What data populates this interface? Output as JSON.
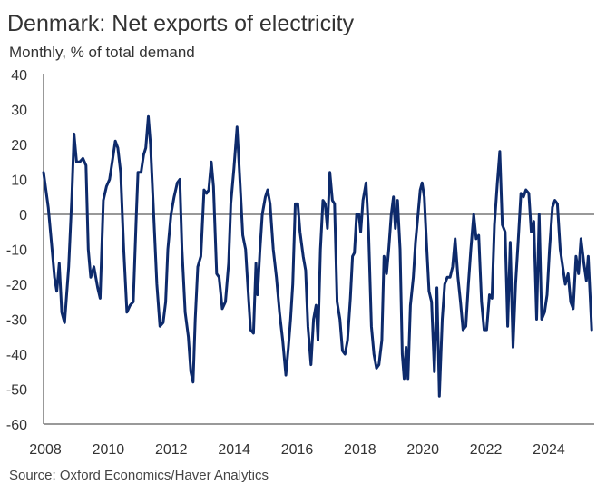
{
  "title": "Denmark: Net exports of electricity",
  "subtitle": "Monthly, % of total demand",
  "source": "Source: Oxford Economics/Haver Analytics",
  "colors": {
    "line": "#0d2a6b",
    "zero_line": "#333333",
    "axis": "#333333"
  },
  "chart_data": {
    "type": "line",
    "title": "Denmark: Net exports of electricity",
    "subtitle": "Monthly, % of total demand",
    "ylim": [
      -60,
      40
    ],
    "y_ticks": [
      40,
      30,
      20,
      10,
      0,
      -10,
      -20,
      -30,
      -40,
      -50,
      -60
    ],
    "x_range": [
      2008.0,
      2025.5
    ],
    "x_ticks": [
      2008,
      2010,
      2012,
      2014,
      2016,
      2018,
      2020,
      2022,
      2024
    ],
    "grid": false,
    "legend": "none",
    "series": [
      {
        "points": [
          [
            2008.0,
            12
          ],
          [
            2008.15,
            2
          ],
          [
            2008.25,
            -8
          ],
          [
            2008.35,
            -18
          ],
          [
            2008.42,
            -22
          ],
          [
            2008.5,
            -14
          ],
          [
            2008.58,
            -28
          ],
          [
            2008.67,
            -31
          ],
          [
            2008.8,
            -15
          ],
          [
            2008.9,
            5
          ],
          [
            2008.97,
            23
          ],
          [
            2009.05,
            15
          ],
          [
            2009.15,
            15
          ],
          [
            2009.25,
            16
          ],
          [
            2009.35,
            14
          ],
          [
            2009.42,
            -10
          ],
          [
            2009.5,
            -18
          ],
          [
            2009.6,
            -15
          ],
          [
            2009.72,
            -21
          ],
          [
            2009.8,
            -24
          ],
          [
            2009.9,
            4
          ],
          [
            2010.0,
            8
          ],
          [
            2010.1,
            10
          ],
          [
            2010.2,
            16
          ],
          [
            2010.28,
            21
          ],
          [
            2010.36,
            19
          ],
          [
            2010.45,
            12
          ],
          [
            2010.55,
            -10
          ],
          [
            2010.65,
            -28
          ],
          [
            2010.75,
            -26
          ],
          [
            2010.85,
            -25
          ],
          [
            2010.95,
            0
          ],
          [
            2011.0,
            12
          ],
          [
            2011.1,
            12
          ],
          [
            2011.18,
            17
          ],
          [
            2011.25,
            19
          ],
          [
            2011.33,
            28
          ],
          [
            2011.4,
            20
          ],
          [
            2011.5,
            0
          ],
          [
            2011.6,
            -20
          ],
          [
            2011.7,
            -32
          ],
          [
            2011.8,
            -31
          ],
          [
            2011.88,
            -25
          ],
          [
            2011.95,
            -10
          ],
          [
            2012.05,
            0
          ],
          [
            2012.15,
            5
          ],
          [
            2012.25,
            9
          ],
          [
            2012.33,
            10
          ],
          [
            2012.4,
            -10
          ],
          [
            2012.5,
            -28
          ],
          [
            2012.6,
            -35
          ],
          [
            2012.68,
            -45
          ],
          [
            2012.75,
            -48
          ],
          [
            2012.82,
            -30
          ],
          [
            2012.9,
            -15
          ],
          [
            2013.0,
            -12
          ],
          [
            2013.1,
            7
          ],
          [
            2013.18,
            6
          ],
          [
            2013.25,
            7
          ],
          [
            2013.33,
            15
          ],
          [
            2013.4,
            8
          ],
          [
            2013.5,
            -17
          ],
          [
            2013.58,
            -18
          ],
          [
            2013.68,
            -27
          ],
          [
            2013.78,
            -25
          ],
          [
            2013.88,
            -14
          ],
          [
            2013.95,
            3
          ],
          [
            2014.05,
            13
          ],
          [
            2014.15,
            25
          ],
          [
            2014.25,
            8
          ],
          [
            2014.33,
            -6
          ],
          [
            2014.42,
            -10
          ],
          [
            2014.5,
            -22
          ],
          [
            2014.58,
            -33
          ],
          [
            2014.67,
            -34
          ],
          [
            2014.75,
            -14
          ],
          [
            2014.8,
            -23
          ],
          [
            2014.88,
            -10
          ],
          [
            2014.95,
            0
          ],
          [
            2015.05,
            5
          ],
          [
            2015.12,
            7
          ],
          [
            2015.2,
            3
          ],
          [
            2015.3,
            -10
          ],
          [
            2015.4,
            -18
          ],
          [
            2015.5,
            -28
          ],
          [
            2015.6,
            -36
          ],
          [
            2015.7,
            -46
          ],
          [
            2015.78,
            -38
          ],
          [
            2015.85,
            -30
          ],
          [
            2015.92,
            -20
          ],
          [
            2016.0,
            3
          ],
          [
            2016.08,
            3
          ],
          [
            2016.15,
            -5
          ],
          [
            2016.25,
            -12
          ],
          [
            2016.33,
            -16
          ],
          [
            2016.4,
            -32
          ],
          [
            2016.5,
            -43
          ],
          [
            2016.58,
            -30
          ],
          [
            2016.66,
            -26
          ],
          [
            2016.72,
            -36
          ],
          [
            2016.8,
            -10
          ],
          [
            2016.88,
            4
          ],
          [
            2016.95,
            3
          ],
          [
            2017.02,
            -4
          ],
          [
            2017.1,
            12
          ],
          [
            2017.18,
            4
          ],
          [
            2017.25,
            3
          ],
          [
            2017.33,
            -25
          ],
          [
            2017.42,
            -30
          ],
          [
            2017.5,
            -39
          ],
          [
            2017.58,
            -40
          ],
          [
            2017.66,
            -36
          ],
          [
            2017.75,
            -24
          ],
          [
            2017.82,
            -12
          ],
          [
            2017.88,
            -11
          ],
          [
            2017.95,
            0
          ],
          [
            2018.02,
            0
          ],
          [
            2018.08,
            -5
          ],
          [
            2018.15,
            4
          ],
          [
            2018.25,
            9
          ],
          [
            2018.33,
            -5
          ],
          [
            2018.42,
            -32
          ],
          [
            2018.5,
            -40
          ],
          [
            2018.58,
            -44
          ],
          [
            2018.66,
            -43
          ],
          [
            2018.75,
            -36
          ],
          [
            2018.82,
            -12
          ],
          [
            2018.9,
            -17
          ],
          [
            2018.97,
            -10
          ],
          [
            2019.05,
            0
          ],
          [
            2019.12,
            5
          ],
          [
            2019.18,
            -4
          ],
          [
            2019.25,
            4
          ],
          [
            2019.33,
            -10
          ],
          [
            2019.4,
            -40
          ],
          [
            2019.46,
            -47
          ],
          [
            2019.52,
            -38
          ],
          [
            2019.58,
            -47
          ],
          [
            2019.66,
            -26
          ],
          [
            2019.75,
            -18
          ],
          [
            2019.82,
            -8
          ],
          [
            2019.9,
            0
          ],
          [
            2019.97,
            7
          ],
          [
            2020.03,
            9
          ],
          [
            2020.1,
            5
          ],
          [
            2020.18,
            -10
          ],
          [
            2020.25,
            -22
          ],
          [
            2020.33,
            -25
          ],
          [
            2020.42,
            -45
          ],
          [
            2020.5,
            -21
          ],
          [
            2020.58,
            -52
          ],
          [
            2020.67,
            -30
          ],
          [
            2020.75,
            -20
          ],
          [
            2020.83,
            -18
          ],
          [
            2020.92,
            -18
          ],
          [
            2021.0,
            -15
          ],
          [
            2021.08,
            -7
          ],
          [
            2021.17,
            -18
          ],
          [
            2021.25,
            -25
          ],
          [
            2021.33,
            -33
          ],
          [
            2021.42,
            -32
          ],
          [
            2021.5,
            -20
          ],
          [
            2021.58,
            -10
          ],
          [
            2021.67,
            0
          ],
          [
            2021.75,
            -7
          ],
          [
            2021.83,
            -6
          ],
          [
            2021.92,
            -25
          ],
          [
            2022.0,
            -33
          ],
          [
            2022.08,
            -33
          ],
          [
            2022.17,
            -23
          ],
          [
            2022.25,
            -24
          ],
          [
            2022.33,
            -3
          ],
          [
            2022.42,
            9
          ],
          [
            2022.5,
            18
          ],
          [
            2022.58,
            -3
          ],
          [
            2022.67,
            -5
          ],
          [
            2022.75,
            -32
          ],
          [
            2022.83,
            -8
          ],
          [
            2022.92,
            -38
          ],
          [
            2023.0,
            -20
          ],
          [
            2023.08,
            -8
          ],
          [
            2023.17,
            6
          ],
          [
            2023.25,
            5
          ],
          [
            2023.33,
            7
          ],
          [
            2023.42,
            6
          ],
          [
            2023.5,
            -5
          ],
          [
            2023.58,
            -2
          ],
          [
            2023.67,
            -30
          ],
          [
            2023.75,
            0
          ],
          [
            2023.83,
            -30
          ],
          [
            2023.92,
            -28
          ],
          [
            2024.0,
            -23
          ],
          [
            2024.08,
            -10
          ],
          [
            2024.17,
            2
          ],
          [
            2024.25,
            4
          ],
          [
            2024.33,
            3
          ],
          [
            2024.42,
            -10
          ],
          [
            2024.5,
            -15
          ],
          [
            2024.58,
            -20
          ],
          [
            2024.67,
            -17
          ],
          [
            2024.75,
            -25
          ],
          [
            2024.83,
            -27
          ],
          [
            2024.92,
            -12
          ],
          [
            2025.0,
            -17
          ],
          [
            2025.08,
            -7
          ],
          [
            2025.17,
            -14
          ],
          [
            2025.25,
            -19
          ],
          [
            2025.31,
            -12
          ],
          [
            2025.42,
            -33
          ]
        ]
      }
    ]
  }
}
